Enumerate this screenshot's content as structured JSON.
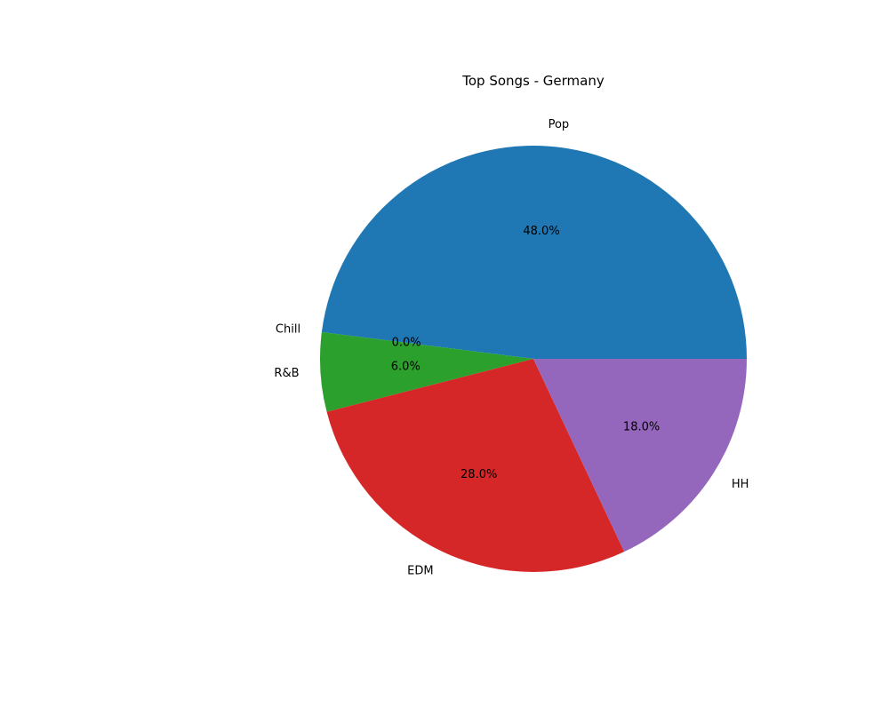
{
  "chart_data": {
    "type": "pie",
    "title": "Top Songs - Germany",
    "categories": [
      "Pop",
      "Chill",
      "R&B",
      "EDM",
      "HH"
    ],
    "values": [
      48.0,
      0.0,
      6.0,
      28.0,
      18.0
    ],
    "value_labels": [
      "48.0%",
      "0.0%",
      "6.0%",
      "28.0%",
      "18.0%"
    ],
    "colors": [
      "#1f77b4",
      "#ff7f0e",
      "#2ca02c",
      "#d62728",
      "#9467bd"
    ],
    "start_angle_deg": 0,
    "direction": "counterclockwise",
    "legend": "none",
    "grid": false
  }
}
